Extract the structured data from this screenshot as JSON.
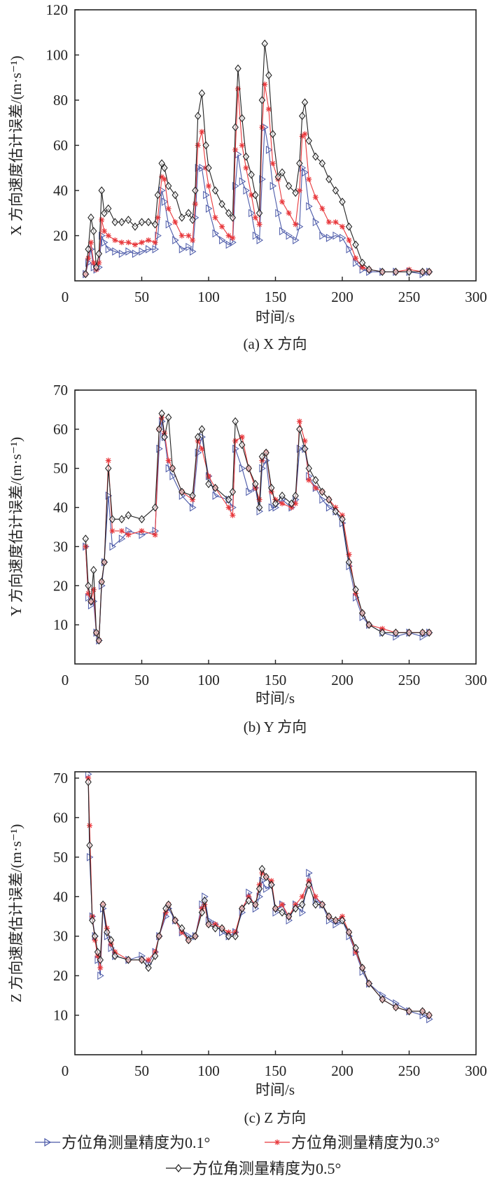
{
  "colors": {
    "s01": "#4b59a8",
    "s03": "#e8383c",
    "s05": "#222222"
  },
  "legend": [
    {
      "label": "方位角测量精度为0.1°",
      "marker": "triangle-right",
      "color": "#4b59a8"
    },
    {
      "label": "方位角测量精度为0.3°",
      "marker": "star",
      "color": "#e8383c"
    },
    {
      "label": "方位角测量精度为0.5°",
      "marker": "diamond",
      "color": "#222222"
    }
  ],
  "chart_data": [
    {
      "type": "line",
      "caption": "(a) X 方向",
      "xlabel": "时间/s",
      "ylabel": "X 方向速度估计误差/(m·s⁻¹)",
      "xlim": [
        0,
        300
      ],
      "ylim": [
        0,
        120
      ],
      "xticks": [
        0,
        50,
        100,
        150,
        200,
        250,
        300
      ],
      "yticks": [
        20,
        40,
        60,
        80,
        100,
        120
      ],
      "x": [
        8,
        10,
        12,
        14,
        16,
        18,
        20,
        22,
        25,
        30,
        35,
        40,
        45,
        50,
        55,
        60,
        62,
        65,
        67,
        70,
        75,
        80,
        85,
        88,
        90,
        92,
        95,
        98,
        100,
        105,
        110,
        115,
        118,
        120,
        122,
        125,
        128,
        132,
        135,
        138,
        140,
        142,
        145,
        148,
        152,
        155,
        160,
        165,
        168,
        170,
        172,
        175,
        180,
        185,
        190,
        195,
        200,
        205,
        210,
        215,
        220,
        230,
        240,
        250,
        260,
        265
      ],
      "series": [
        {
          "name": "方位角测量精度为0.1°",
          "values": [
            3,
            8,
            14,
            6,
            5,
            6,
            20,
            17,
            14,
            13,
            12,
            13,
            12,
            13,
            14,
            14,
            20,
            40,
            35,
            25,
            18,
            14,
            15,
            13,
            28,
            50,
            50,
            38,
            32,
            21,
            18,
            16,
            17,
            42,
            56,
            44,
            40,
            30,
            20,
            18,
            45,
            68,
            58,
            42,
            30,
            22,
            20,
            18,
            24,
            50,
            48,
            33,
            26,
            20,
            19,
            20,
            19,
            14,
            8,
            5,
            4,
            4,
            4,
            4,
            3,
            4
          ]
        },
        {
          "name": "方位角测量精度为0.3°",
          "values": [
            3,
            10,
            17,
            8,
            5,
            8,
            27,
            22,
            20,
            18,
            17,
            17,
            16,
            17,
            18,
            17,
            28,
            46,
            45,
            32,
            26,
            20,
            20,
            18,
            34,
            60,
            66,
            50,
            42,
            28,
            24,
            20,
            19,
            58,
            85,
            60,
            50,
            38,
            28,
            25,
            68,
            87,
            76,
            52,
            45,
            35,
            30,
            25,
            40,
            64,
            65,
            45,
            37,
            32,
            26,
            26,
            24,
            18,
            10,
            6,
            5,
            4,
            4,
            5,
            4,
            4
          ]
        },
        {
          "name": "方位角测量精度为0.5°",
          "values": [
            3,
            14,
            28,
            22,
            6,
            12,
            40,
            30,
            32,
            26,
            26,
            27,
            24,
            26,
            26,
            25,
            38,
            52,
            50,
            42,
            38,
            28,
            30,
            27,
            40,
            73,
            83,
            60,
            50,
            40,
            34,
            30,
            28,
            68,
            94,
            72,
            55,
            47,
            38,
            30,
            80,
            105,
            91,
            65,
            46,
            48,
            42,
            39,
            52,
            73,
            79,
            62,
            55,
            52,
            45,
            40,
            35,
            24,
            16,
            8,
            5,
            4,
            4,
            4,
            4,
            4
          ]
        }
      ]
    },
    {
      "type": "line",
      "caption": "(b) Y 方向",
      "xlabel": "时间/s",
      "ylabel": "Y 方向速度估计误差/(m·s⁻¹)",
      "xlim": [
        0,
        300
      ],
      "ylim": [
        0,
        70
      ],
      "xticks": [
        0,
        50,
        100,
        150,
        200,
        250,
        300
      ],
      "yticks": [
        10,
        20,
        30,
        40,
        50,
        60,
        70
      ],
      "x": [
        8,
        10,
        12,
        14,
        16,
        18,
        20,
        22,
        25,
        28,
        35,
        40,
        50,
        60,
        63,
        65,
        67,
        70,
        73,
        80,
        88,
        92,
        95,
        100,
        105,
        115,
        118,
        120,
        125,
        130,
        135,
        138,
        140,
        143,
        147,
        150,
        155,
        162,
        165,
        168,
        172,
        175,
        180,
        185,
        190,
        195,
        200,
        205,
        210,
        215,
        220,
        230,
        240,
        250,
        260,
        265
      ],
      "series": [
        {
          "name": "方位角测量精度为0.1°",
          "values": [
            30,
            17,
            15,
            16,
            8,
            6,
            20,
            26,
            43,
            30,
            32,
            34,
            33,
            34,
            55,
            62,
            58,
            50,
            48,
            43,
            40,
            54,
            58,
            48,
            43,
            42,
            40,
            55,
            50,
            44,
            45,
            39,
            50,
            52,
            40,
            40,
            42,
            40,
            42,
            55,
            55,
            48,
            45,
            42,
            40,
            39,
            36,
            25,
            17,
            12,
            10,
            8,
            7,
            8,
            7,
            8
          ]
        },
        {
          "name": "方位角测量精度为0.3°",
          "values": [
            30,
            18,
            16,
            19,
            8,
            6,
            21,
            26,
            52,
            34,
            34,
            33,
            34,
            33,
            60,
            63,
            59,
            52,
            50,
            44,
            42,
            57,
            55,
            48,
            45,
            40,
            38,
            57,
            58,
            50,
            45,
            42,
            52,
            54,
            44,
            42,
            41,
            40,
            41,
            62,
            57,
            47,
            45,
            44,
            42,
            40,
            38,
            28,
            18,
            13,
            10,
            9,
            8,
            8,
            8,
            8
          ]
        },
        {
          "name": "方位角测量精度为0.5°",
          "values": [
            32,
            20,
            16,
            24,
            8,
            6,
            21,
            26,
            50,
            37,
            37,
            38,
            37,
            40,
            60,
            64,
            58,
            63,
            50,
            44,
            43,
            58,
            60,
            46,
            45,
            42,
            44,
            62,
            56,
            50,
            46,
            40,
            53,
            54,
            45,
            41,
            43,
            41,
            43,
            60,
            55,
            50,
            47,
            44,
            42,
            39,
            37,
            26,
            19,
            13,
            10,
            8,
            8,
            8,
            8,
            8
          ]
        }
      ]
    },
    {
      "type": "line",
      "caption": "(c) Z 方向",
      "xlabel": "时间/s",
      "ylabel": "Z 方向速度估计误差/(m·s⁻¹)",
      "xlim": [
        0,
        300
      ],
      "ylim": [
        0,
        71.6
      ],
      "xticks": [
        0,
        50,
        100,
        150,
        200,
        250,
        300
      ],
      "yticks": [
        10,
        20,
        30,
        40,
        50,
        60,
        70
      ],
      "x": [
        10,
        11,
        13,
        15,
        17,
        19,
        21,
        24,
        27,
        30,
        40,
        50,
        55,
        60,
        63,
        68,
        70,
        75,
        80,
        85,
        90,
        95,
        97,
        100,
        105,
        110,
        115,
        120,
        125,
        130,
        135,
        138,
        140,
        143,
        147,
        150,
        155,
        160,
        165,
        170,
        175,
        180,
        185,
        190,
        195,
        200,
        205,
        210,
        215,
        220,
        230,
        240,
        250,
        260,
        265
      ],
      "series": [
        {
          "name": "方位角测量精度为0.1°",
          "values": [
            71,
            50,
            35,
            30,
            24,
            20,
            37,
            30,
            27,
            25,
            24,
            25,
            23,
            26,
            30,
            35,
            37,
            34,
            31,
            30,
            30,
            38,
            40,
            34,
            33,
            31,
            30,
            31,
            36,
            41,
            37,
            40,
            44,
            42,
            43,
            36,
            38,
            34,
            38,
            36,
            46,
            39,
            38,
            34,
            33,
            34,
            30,
            26,
            21,
            18,
            15,
            13,
            11,
            10,
            9
          ]
        },
        {
          "name": "方位角测量精度为0.3°",
          "values": [
            70,
            58,
            35,
            29,
            25,
            22,
            38,
            32,
            28,
            26,
            24,
            24,
            24,
            26,
            30,
            36,
            38,
            34,
            31,
            29,
            30,
            37,
            38,
            33,
            33,
            32,
            31,
            31,
            37,
            40,
            38,
            43,
            46,
            45,
            44,
            37,
            38,
            35,
            38,
            40,
            44,
            40,
            38,
            35,
            34,
            35,
            31,
            26,
            22,
            18,
            14,
            12,
            11,
            11,
            10
          ]
        },
        {
          "name": "方位角测量精度为0.5°",
          "values": [
            69,
            53,
            34,
            30,
            26,
            24,
            38,
            31,
            29,
            25,
            24,
            24,
            22,
            25,
            30,
            37,
            38,
            34,
            32,
            29,
            30,
            36,
            39,
            33,
            32,
            32,
            30,
            30,
            37,
            39,
            38,
            42,
            47,
            45,
            43,
            37,
            36,
            35,
            37,
            38,
            43,
            38,
            38,
            35,
            34,
            34,
            31,
            27,
            22,
            18,
            14,
            12,
            11,
            11,
            10
          ]
        }
      ]
    }
  ]
}
